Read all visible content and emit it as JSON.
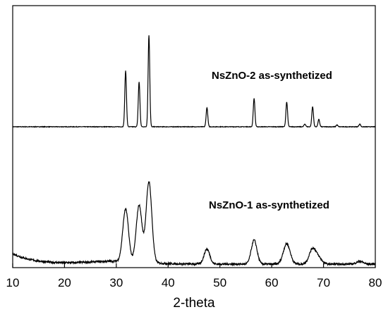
{
  "chart_data": {
    "type": "line",
    "xlabel": "2-theta",
    "ylabel": "",
    "xlim": [
      10,
      80
    ],
    "xticks": [
      10,
      20,
      30,
      40,
      50,
      60,
      70,
      80
    ],
    "grid": false,
    "y_ticks_shown": false,
    "colors": {
      "line": "#000000",
      "axis": "#000000"
    },
    "series": [
      {
        "name": "NsZnO-2 as-synthetized",
        "peaks": [
          {
            "x": 31.8,
            "height": 0.61
          },
          {
            "x": 34.4,
            "height": 0.49
          },
          {
            "x": 36.3,
            "height": 1.0
          },
          {
            "x": 47.5,
            "height": 0.21
          },
          {
            "x": 56.6,
            "height": 0.31
          },
          {
            "x": 62.9,
            "height": 0.27
          },
          {
            "x": 66.4,
            "height": 0.03
          },
          {
            "x": 67.9,
            "height": 0.22
          },
          {
            "x": 69.1,
            "height": 0.08
          },
          {
            "x": 72.6,
            "height": 0.02
          },
          {
            "x": 77.0,
            "height": 0.03
          }
        ]
      },
      {
        "name": "NsZnO-1 as-synthetized",
        "peaks": [
          {
            "x": 31.8,
            "height": 0.59
          },
          {
            "x": 34.4,
            "height": 0.64
          },
          {
            "x": 36.3,
            "height": 0.91
          },
          {
            "x": 47.5,
            "height": 0.17
          },
          {
            "x": 56.6,
            "height": 0.27
          },
          {
            "x": 62.9,
            "height": 0.23
          },
          {
            "x": 67.9,
            "height": 0.17
          },
          {
            "x": 69.1,
            "height": 0.06
          },
          {
            "x": 77.0,
            "height": 0.03
          }
        ]
      }
    ]
  }
}
